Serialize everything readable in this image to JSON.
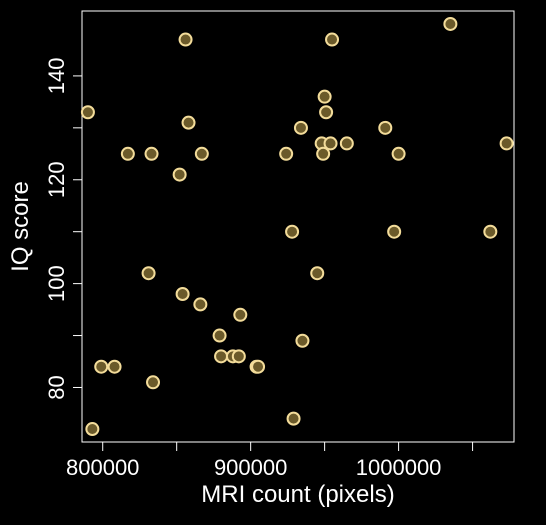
{
  "chart_data": {
    "type": "scatter",
    "title": "",
    "xlabel": "MRI count (pixels)",
    "ylabel": "IQ score",
    "xlim": [
      786000,
      1078000
    ],
    "ylim": [
      69.5,
      152.5
    ],
    "x_ticks": [
      800000,
      850000,
      900000,
      950000,
      1000000,
      1050000
    ],
    "x_tick_labels": [
      "800000",
      "",
      "900000",
      "",
      "1000000",
      ""
    ],
    "y_ticks": [
      80,
      90,
      100,
      110,
      120,
      130,
      140
    ],
    "y_tick_labels": [
      "80",
      "",
      "100",
      "",
      "120",
      "",
      "140"
    ],
    "grid": false,
    "legend": "none",
    "colors": {
      "background": "#000000",
      "axes": "#ffffff",
      "marker_fill": "#6b5a2a",
      "marker_stroke": "#f3dc9a"
    },
    "points": [
      {
        "x": 790000,
        "y": 133
      },
      {
        "x": 793000,
        "y": 72
      },
      {
        "x": 799000,
        "y": 84
      },
      {
        "x": 808000,
        "y": 84
      },
      {
        "x": 817000,
        "y": 125
      },
      {
        "x": 831000,
        "y": 102
      },
      {
        "x": 833000,
        "y": 125
      },
      {
        "x": 834000,
        "y": 81
      },
      {
        "x": 852000,
        "y": 121
      },
      {
        "x": 854000,
        "y": 98
      },
      {
        "x": 856000,
        "y": 147
      },
      {
        "x": 858000,
        "y": 131
      },
      {
        "x": 866000,
        "y": 96
      },
      {
        "x": 867000,
        "y": 125
      },
      {
        "x": 879000,
        "y": 90
      },
      {
        "x": 880000,
        "y": 86
      },
      {
        "x": 888000,
        "y": 86
      },
      {
        "x": 892000,
        "y": 86
      },
      {
        "x": 893000,
        "y": 94
      },
      {
        "x": 904000,
        "y": 84
      },
      {
        "x": 905000,
        "y": 84
      },
      {
        "x": 924000,
        "y": 125
      },
      {
        "x": 928000,
        "y": 110
      },
      {
        "x": 929000,
        "y": 74
      },
      {
        "x": 934000,
        "y": 130
      },
      {
        "x": 935000,
        "y": 89
      },
      {
        "x": 945000,
        "y": 102
      },
      {
        "x": 948000,
        "y": 127
      },
      {
        "x": 949000,
        "y": 125
      },
      {
        "x": 950000,
        "y": 136
      },
      {
        "x": 951000,
        "y": 133
      },
      {
        "x": 954000,
        "y": 127
      },
      {
        "x": 955000,
        "y": 147
      },
      {
        "x": 965000,
        "y": 127
      },
      {
        "x": 991000,
        "y": 130
      },
      {
        "x": 997000,
        "y": 110
      },
      {
        "x": 1000000,
        "y": 125
      },
      {
        "x": 1035000,
        "y": 150
      },
      {
        "x": 1062000,
        "y": 110
      },
      {
        "x": 1073000,
        "y": 127
      }
    ]
  }
}
